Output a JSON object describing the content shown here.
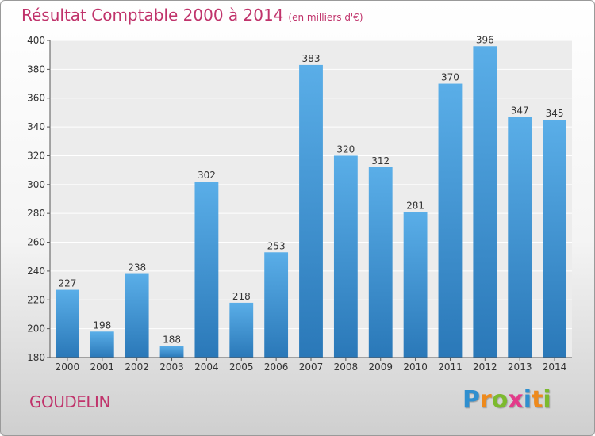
{
  "header": {
    "title": "Résultat Comptable 2000 à 2014",
    "subtitle": "(en milliers d'€)"
  },
  "footer": {
    "place": "GOUDELIN",
    "logo": {
      "letters": [
        "P",
        "r",
        "o",
        "x",
        "i",
        "t",
        "i"
      ],
      "colors": [
        "#2f8fcf",
        "#ee8a1c",
        "#7cba2e",
        "#e33b8a",
        "#2f8fcf",
        "#ee8a1c",
        "#7cba2e"
      ]
    }
  },
  "colors": {
    "title": "#c0336b",
    "bar_top": "#5aaee8",
    "bar_bottom": "#2a78b8"
  },
  "chart_data": {
    "type": "bar",
    "categories": [
      "2000",
      "2001",
      "2002",
      "2003",
      "2004",
      "2005",
      "2006",
      "2007",
      "2008",
      "2009",
      "2010",
      "2011",
      "2012",
      "2013",
      "2014"
    ],
    "values": [
      227,
      198,
      238,
      188,
      302,
      218,
      253,
      383,
      320,
      312,
      281,
      370,
      396,
      347,
      345
    ],
    "title": "Résultat Comptable 2000 à 2014",
    "xlabel": "",
    "ylabel": "",
    "ylim": [
      180,
      400
    ],
    "yticks": [
      180,
      200,
      220,
      240,
      260,
      280,
      300,
      320,
      340,
      360,
      380,
      400
    ],
    "grid": true,
    "data_labels": true
  }
}
